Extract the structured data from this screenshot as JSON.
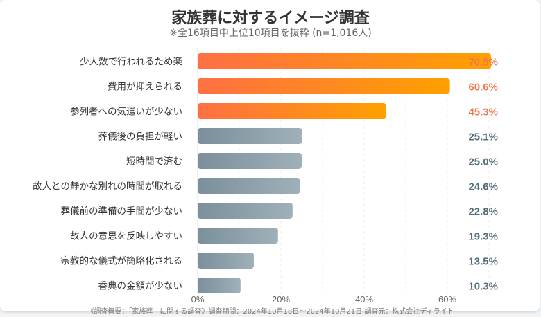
{
  "chart_data": {
    "type": "bar",
    "orientation": "horizontal",
    "title": "家族葬に対するイメージ調査",
    "subtitle": "※全16項目中上位10項目を抜粋 (n=1,016人)",
    "categories": [
      "少人数で行われるため楽",
      "費用が抑えられる",
      "参列者への気遣いが少ない",
      "葬儀後の負担が軽い",
      "短時間で済む",
      "故人との静かな別れの時間が取れる",
      "葬儀前の準備の手間が少ない",
      "故人の意思を反映しやすい",
      "宗教的な儀式が簡略化される",
      "香典の金額が少ない"
    ],
    "values": [
      70.5,
      60.6,
      45.3,
      25.1,
      25.0,
      24.6,
      22.8,
      19.3,
      13.5,
      10.3
    ],
    "value_labels": [
      "70.5%",
      "60.6%",
      "45.3%",
      "25.1%",
      "25.0%",
      "24.6%",
      "22.8%",
      "19.3%",
      "13.5%",
      "10.3%"
    ],
    "xlim": [
      0,
      70
    ],
    "xticks": [
      "0%",
      "20%",
      "40%",
      "60%"
    ],
    "grid": true,
    "highlight_count": 3,
    "colors": {
      "highlight_start": "#ff7043",
      "highlight_end": "#ffa000",
      "highlight_label": "#f07850",
      "normal_start": "#7b909c",
      "normal_end": "#9fb0b8",
      "normal_label": "#546e7a"
    },
    "footnote": "《調査概要：「家族葬」に関する調査》調査期間：2024年10月18日～2024年10月21日 調査元：株式会社ディライト"
  }
}
